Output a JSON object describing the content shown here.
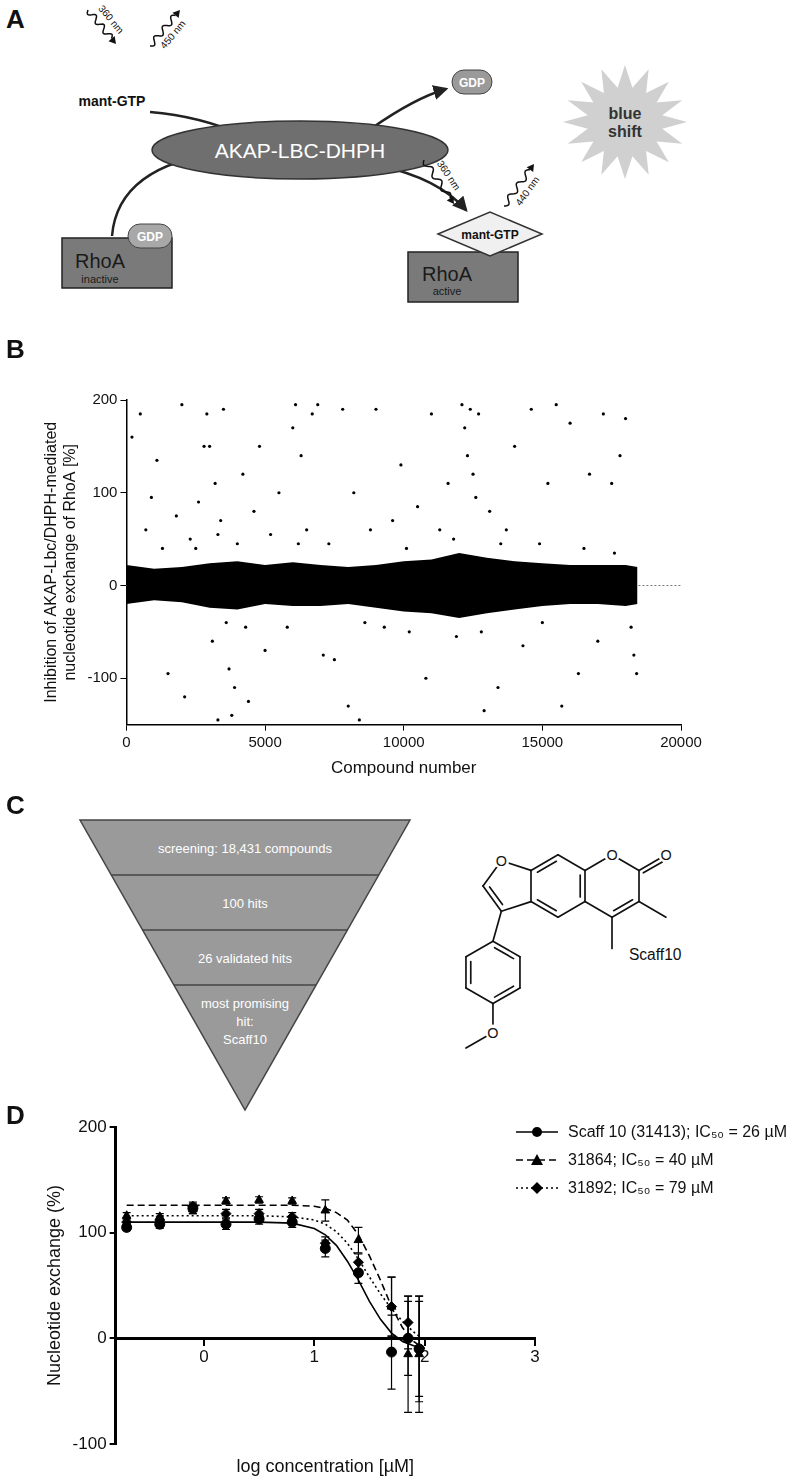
{
  "panel_labels": [
    "A",
    "B",
    "C",
    "D"
  ],
  "diagram_A": {
    "enzyme": "AKAP-LBC-DHPH",
    "substrate": "mant-GTP",
    "released": "GDP",
    "inactive": {
      "protein": "RhoA",
      "state": "inactive",
      "nucleotide": "GDP"
    },
    "active": {
      "protein": "RhoA",
      "state": "active",
      "nucleotide": "mant-GTP"
    },
    "free_excitation": "360 nm",
    "free_emission": "450 nm",
    "bound_excitation": "360 nm",
    "bound_emission": "440 nm",
    "readout": [
      "blue",
      "shift"
    ]
  },
  "diagram_C": {
    "funnel": [
      [
        "screening: 18,431 compounds"
      ],
      [
        "100 hits"
      ],
      [
        "26 validated hits"
      ],
      [
        "most promising",
        "hit:",
        "Scaff10"
      ]
    ],
    "structure": {
      "name": "Scaff10",
      "atom_labels": [
        "O",
        "O",
        "O",
        "O"
      ]
    }
  },
  "chart_data": [
    {
      "type": "scatter",
      "x_label": "Compound number",
      "y_label": [
        "Inhibition of AKAP-Lbc/DHPH-mediated",
        "nucleotide exchange of RhoA [%]"
      ],
      "xlim": [
        0,
        20000
      ],
      "xticks": [
        0,
        5000,
        10000,
        15000,
        20000
      ],
      "ylim": [
        -150,
        200
      ],
      "yticks": [
        -100,
        0,
        100,
        200
      ],
      "grid": false,
      "color": "#000000",
      "reference_line": 0,
      "band": {
        "x": [
          0,
          1000,
          2000,
          3000,
          4000,
          5000,
          6000,
          7000,
          8000,
          9000,
          10000,
          11000,
          12000,
          13000,
          14000,
          15000,
          16000,
          17000,
          18000,
          18431
        ],
        "lower": [
          -20,
          -16,
          -18,
          -24,
          -26,
          -20,
          -22,
          -22,
          -20,
          -24,
          -28,
          -30,
          -35,
          -30,
          -26,
          -22,
          -20,
          -20,
          -22,
          -20
        ],
        "upper": [
          22,
          18,
          20,
          24,
          26,
          22,
          25,
          22,
          20,
          22,
          26,
          28,
          35,
          30,
          26,
          24,
          22,
          22,
          22,
          20
        ]
      },
      "x": [
        200,
        500,
        700,
        900,
        1100,
        1300,
        1500,
        1800,
        2000,
        2100,
        2300,
        2600,
        2800,
        2900,
        3000,
        3100,
        3200,
        3300,
        3400,
        3500,
        3600,
        3700,
        3800,
        3900,
        4000,
        4200,
        4400,
        4600,
        4800,
        5000,
        5200,
        5500,
        5800,
        6000,
        6100,
        6300,
        6500,
        6700,
        6900,
        7100,
        7300,
        7500,
        7800,
        8000,
        8200,
        8400,
        8800,
        9000,
        9300,
        9600,
        9900,
        10200,
        10500,
        10800,
        11000,
        11300,
        11600,
        11900,
        12100,
        12200,
        12300,
        12400,
        12500,
        12600,
        12700,
        12900,
        13100,
        13400,
        13700,
        14000,
        14300,
        14600,
        14900,
        15200,
        15500,
        15700,
        16000,
        16300,
        16700,
        17000,
        17200,
        17500,
        17800,
        18000,
        18200,
        18300,
        18400,
        2500,
        3300,
        4300,
        6200,
        8600,
        10100,
        11800,
        12800,
        13500,
        15000,
        16500,
        17600
      ],
      "values": [
        160,
        185,
        60,
        95,
        135,
        40,
        -95,
        75,
        195,
        -120,
        50,
        90,
        150,
        185,
        150,
        -60,
        110,
        -145,
        70,
        190,
        -40,
        -90,
        -140,
        -110,
        45,
        120,
        -125,
        80,
        150,
        -70,
        55,
        100,
        -45,
        170,
        195,
        140,
        60,
        185,
        195,
        -75,
        45,
        -80,
        190,
        -130,
        100,
        -145,
        60,
        190,
        -45,
        70,
        130,
        -50,
        85,
        -100,
        185,
        60,
        110,
        -55,
        195,
        170,
        140,
        190,
        120,
        95,
        185,
        -135,
        80,
        -110,
        60,
        150,
        -65,
        190,
        45,
        110,
        195,
        -130,
        175,
        -95,
        120,
        -60,
        185,
        110,
        140,
        180,
        -45,
        -75,
        -95,
        40,
        55,
        -45,
        45,
        -40,
        40,
        50,
        -50,
        45,
        -40,
        40,
        35
      ]
    },
    {
      "type": "line",
      "x_label": "log concentration [µM]",
      "y_label": "Nucleotide exchange (%)",
      "xlim": [
        -0.8,
        3
      ],
      "xticks": [
        0,
        1,
        2,
        3
      ],
      "ylim": [
        -100,
        200
      ],
      "yticks": [
        -100,
        0,
        100,
        200
      ],
      "grid": false,
      "legend": "upper right",
      "x": [
        -0.7,
        -0.4,
        -0.1,
        0.2,
        0.5,
        0.8,
        1.1,
        1.4,
        1.7,
        1.85,
        1.95
      ],
      "fit_x": [
        -0.7,
        0,
        0.5,
        0.8,
        1.0,
        1.1,
        1.2,
        1.3,
        1.4,
        1.5,
        1.6,
        1.7,
        1.8,
        1.9,
        2.0
      ],
      "series": [
        {
          "name": "Scaff 10 (31413); IC₅₀ = 26 µM",
          "color": "#000000",
          "marker": "circle",
          "line_style": "solid",
          "values": [
            105,
            108,
            123,
            108,
            113,
            110,
            85,
            62,
            -13,
            0,
            -10
          ],
          "errors": [
            3,
            4,
            5,
            5,
            5,
            5,
            8,
            10,
            35,
            35,
            50
          ],
          "fit": [
            110,
            110,
            110,
            109,
            104,
            98,
            88,
            73,
            55,
            35,
            18,
            5,
            -3,
            -7,
            -9
          ]
        },
        {
          "name": "31864; IC₅₀ = 40 µM",
          "color": "#000000",
          "marker": "triangle",
          "line_style": "dashed",
          "values": [
            116,
            115,
            122,
            130,
            131,
            130,
            121,
            93,
            30,
            -15,
            -15
          ],
          "errors": [
            3,
            3,
            4,
            3,
            3,
            3,
            10,
            12,
            28,
            55,
            55
          ],
          "fit": [
            126,
            126,
            126,
            126,
            125,
            123,
            119,
            112,
            98,
            78,
            55,
            30,
            10,
            -3,
            -10
          ]
        },
        {
          "name": "31892; IC₅₀ = 79 µM",
          "color": "#000000",
          "marker": "diamond",
          "line_style": "dotted",
          "values": [
            110,
            112,
            125,
            118,
            118,
            115,
            90,
            72,
            30,
            15,
            -10
          ],
          "errors": [
            3,
            3,
            4,
            4,
            4,
            4,
            6,
            8,
            28,
            25,
            45
          ],
          "fit": [
            116,
            116,
            116,
            115,
            112,
            108,
            101,
            90,
            75,
            58,
            42,
            28,
            16,
            6,
            -2
          ]
        }
      ]
    }
  ]
}
